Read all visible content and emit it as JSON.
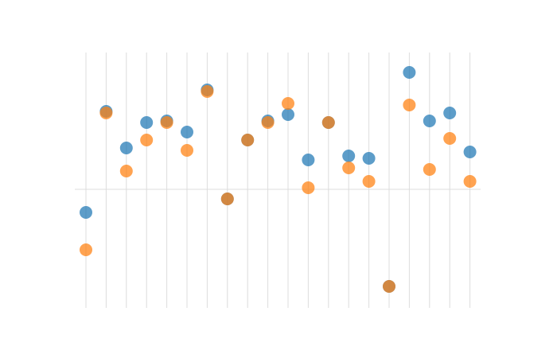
{
  "chart_data": {
    "type": "scatter",
    "categories": [
      null,
      null,
      null,
      null,
      null,
      null,
      null,
      null,
      null,
      null,
      null,
      null,
      null,
      null,
      null,
      null,
      null,
      null,
      null,
      null
    ],
    "series": [
      {
        "color": "#1f77b4",
        "values": [
          -0.29,
          0.98,
          0.52,
          0.84,
          0.86,
          0.72,
          1.25,
          -0.12,
          0.62,
          0.86,
          0.94,
          0.37,
          0.84,
          0.42,
          0.39,
          -1.22,
          1.47,
          0.86,
          0.96,
          0.47
        ]
      },
      {
        "color": "#ff7f0e",
        "values": [
          -0.76,
          0.96,
          0.23,
          0.62,
          0.84,
          0.49,
          1.23,
          -0.12,
          0.62,
          0.84,
          1.08,
          0.02,
          0.84,
          0.27,
          0.1,
          -1.22,
          1.06,
          0.25,
          0.64,
          0.1
        ]
      }
    ],
    "ylim": [
      -1.5,
      1.75
    ],
    "yticks": [
      0
    ],
    "grid": true
  }
}
